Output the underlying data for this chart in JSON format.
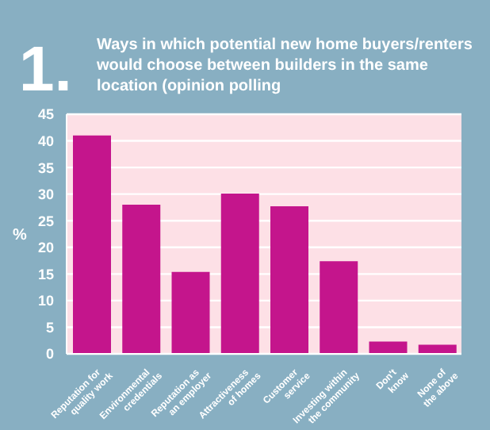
{
  "chart_data": {
    "type": "bar",
    "title": "Ways in which potential new home buyers/renters would choose between builders in the same location (opinion polling",
    "annotations": [
      "1."
    ],
    "ylabel": "%",
    "categories": [
      "Reputation for quality work",
      "Environmental credentials",
      "Reputation as an employer",
      "Attractiveness of homes",
      "Customer service",
      "Investing within the community",
      "Don't know",
      "None of the above"
    ],
    "values": [
      41,
      28,
      15.4,
      30.1,
      27.7,
      17.4,
      2.3,
      1.7
    ],
    "color": "#c4158c",
    "ylim": [
      0,
      45
    ],
    "yticks": [
      0,
      5,
      10,
      15,
      20,
      25,
      30,
      35,
      40,
      45
    ],
    "grid": "y"
  }
}
